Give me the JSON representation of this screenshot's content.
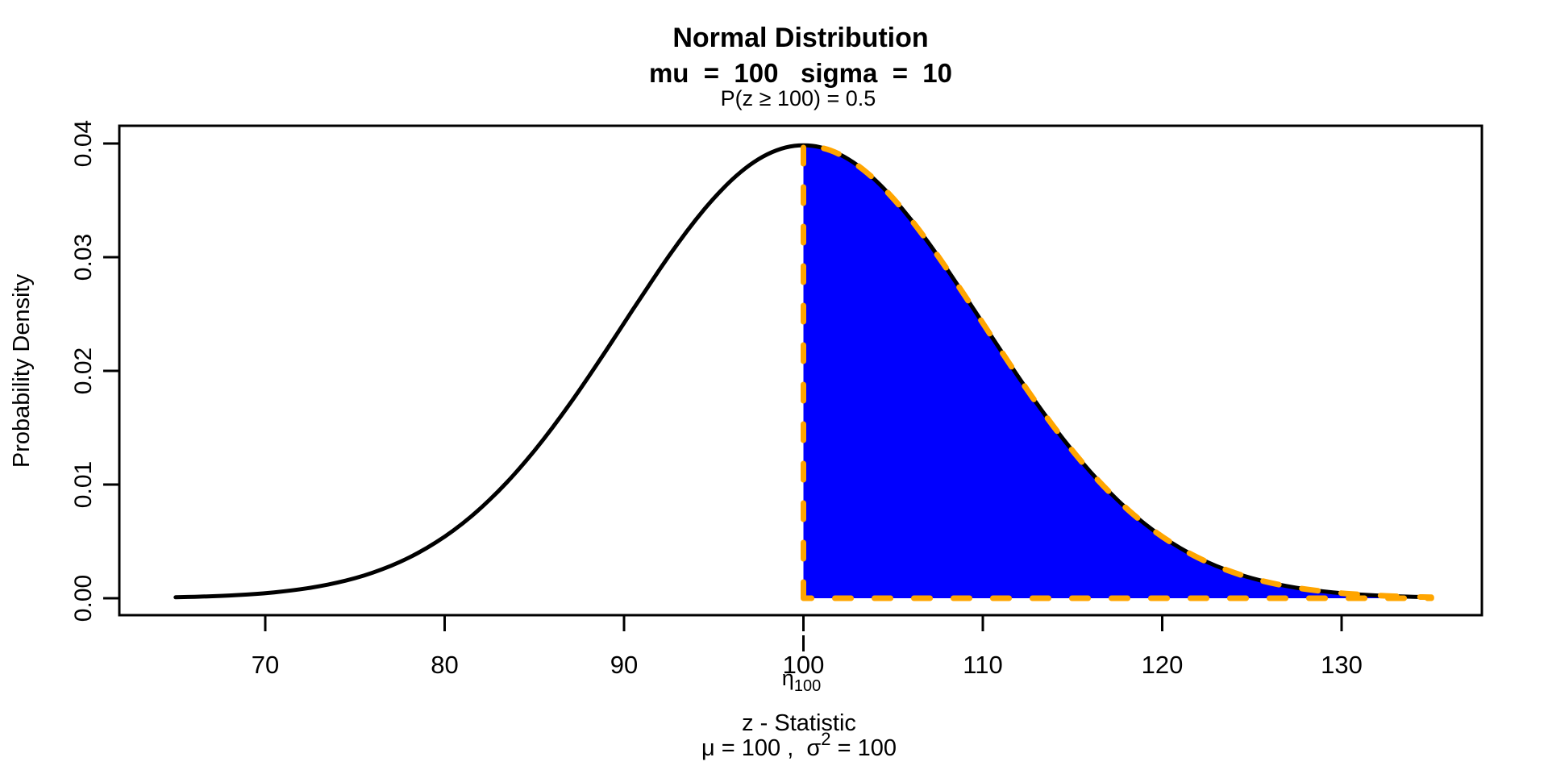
{
  "figure": {
    "title": "Normal Distribution",
    "subtitle": "mu  =  100   sigma  =  10",
    "probability_annotation": "P(z ≥ 100) = 0.5",
    "ylabel": "Probability Density",
    "xlabel": "z - Statistic",
    "variance_note": {
      "prefix": "μ = 100 ,  σ",
      "sup": "2",
      "suffix": " = 100"
    },
    "threshold_label": {
      "base": "η",
      "sub": "100"
    }
  },
  "chart_data": {
    "type": "area",
    "title": "Normal Distribution",
    "subtitle": "mu = 100  sigma = 10",
    "annotation": "P(z ≥ 100) = 0.5",
    "xlabel": "z - Statistic",
    "xlabel_note": "μ = 100 , σ² = 100",
    "ylabel": "Probability Density",
    "distribution": {
      "name": "normal",
      "mu": 100,
      "sigma": 10,
      "variance": 100
    },
    "xlim": [
      65,
      135
    ],
    "ylim": [
      0,
      0.04
    ],
    "grid": false,
    "x_ticks": [
      70,
      80,
      90,
      100,
      110,
      120,
      130
    ],
    "y_ticks": [
      {
        "v": 0.0,
        "label": "0.00"
      },
      {
        "v": 0.01,
        "label": "0.01"
      },
      {
        "v": 0.02,
        "label": "0.02"
      },
      {
        "v": 0.03,
        "label": "0.03"
      },
      {
        "v": 0.04,
        "label": "0.04"
      }
    ],
    "threshold": {
      "x": 100,
      "axis_label": "η_100"
    },
    "shaded_region": {
      "from": 100,
      "to": 135,
      "probability": 0.5,
      "fill_color": "#0000FF",
      "border_color": "#FFA500",
      "border_style": "dashed"
    },
    "curve": {
      "color": "#000000",
      "x_start": 65,
      "x_step": 1,
      "density": [
        8.73e-05,
        0.0001232,
        0.0001723,
        0.0002384,
        0.0003267,
        0.0004432,
        0.0005952,
        0.0007915,
        0.0010421,
        0.0013583,
        0.0017528,
        0.0022395,
        0.0028327,
        0.0035475,
        0.0043984,
        0.0053991,
        0.0065616,
        0.007895,
        0.0094049,
        0.0110921,
        0.0129518,
        0.0149728,
        0.0171369,
        0.0194186,
        0.0217852,
        0.0241971,
        0.0266085,
        0.0289692,
        0.0312254,
        0.0333225,
        0.0352065,
        0.036827,
        0.0381388,
        0.0391043,
        0.0396953,
        0.0398942,
        0.0396953,
        0.0391043,
        0.0381388,
        0.036827,
        0.0352065,
        0.0333225,
        0.0312254,
        0.0289692,
        0.0266085,
        0.0241971,
        0.0217852,
        0.0194186,
        0.0171369,
        0.0149728,
        0.0129518,
        0.0110921,
        0.0094049,
        0.007895,
        0.0065616,
        0.0053991,
        0.0043984,
        0.0035475,
        0.0028327,
        0.0022395,
        0.0017528,
        0.0013583,
        0.0010421,
        0.0007915,
        0.0005952,
        0.0004432,
        0.0003267,
        0.0002384,
        0.0001723,
        0.0001232,
        8.73e-05
      ]
    }
  }
}
